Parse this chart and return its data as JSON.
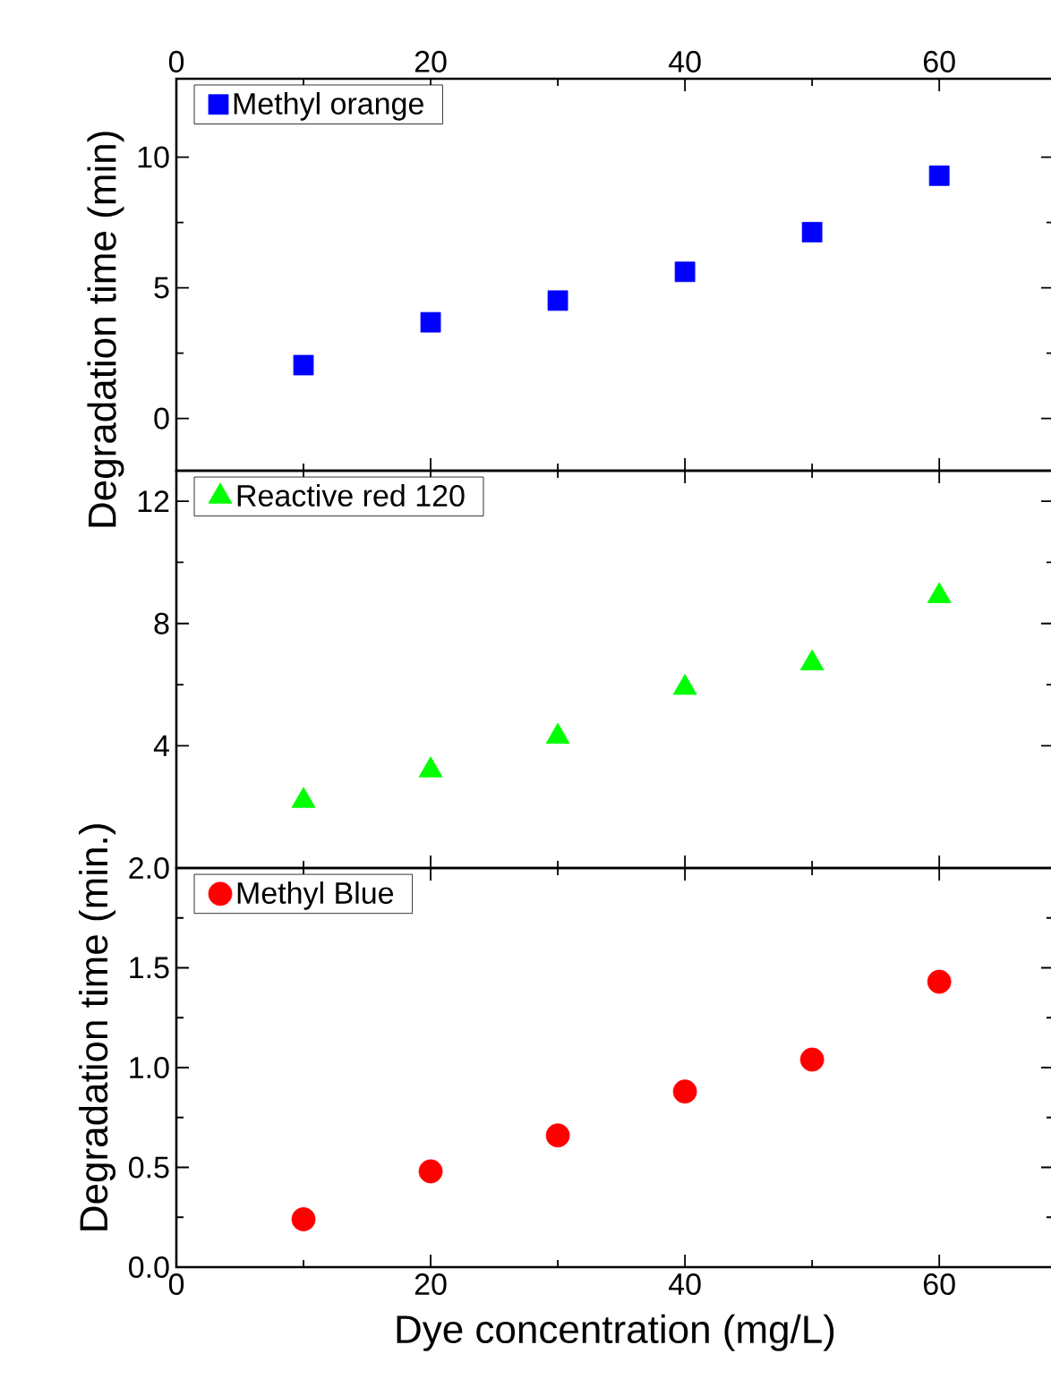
{
  "chart_data": [
    {
      "type": "scatter",
      "ylabel": "Degradation time (min)",
      "marker": "square",
      "legend": "top left",
      "grid": false,
      "xlim": [
        0,
        69
      ],
      "xticks": [
        0,
        20,
        40,
        60
      ],
      "ylim": [
        -2,
        13
      ],
      "yticks": [
        0,
        5,
        10
      ],
      "series": [
        {
          "name": "Methyl orange",
          "color": "#0000ff",
          "x": [
            10,
            20,
            30,
            40,
            50,
            60
          ],
          "values": [
            2.04,
            3.68,
            4.51,
            5.61,
            7.13,
            9.29
          ]
        }
      ]
    },
    {
      "type": "scatter",
      "marker": "triangle",
      "legend": "top left",
      "grid": false,
      "tick_labels": "y",
      "xlim": [
        0,
        69
      ],
      "xticks": [
        0,
        20,
        40,
        60
      ],
      "ylim": [
        0,
        13
      ],
      "yticks": [
        4,
        8,
        12
      ],
      "series": [
        {
          "name": "Reactive red 120",
          "color": "#00ff00",
          "x": [
            10,
            20,
            30,
            40,
            50,
            60
          ],
          "values": [
            2.2,
            3.2,
            4.3,
            5.9,
            6.7,
            8.9
          ]
        }
      ]
    },
    {
      "type": "scatter",
      "xlabel": "Dye concentration (mg/L)",
      "ylabel": "Degradation time (min.)",
      "marker": "circle",
      "legend": "top left",
      "grid": false,
      "xlim": [
        0,
        69
      ],
      "xticks": [
        0,
        20,
        40,
        60
      ],
      "ylim": [
        0,
        2
      ],
      "yticks": [
        {
          "value": 0,
          "label": "0.0"
        },
        0.5,
        {
          "value": 1,
          "label": "1.0"
        },
        1.5,
        {
          "value": 2,
          "label": "2.0"
        }
      ],
      "series": [
        {
          "name": "Methyl Blue",
          "color": "#ff0000",
          "x": [
            10,
            20,
            30,
            40,
            50,
            60
          ],
          "values": [
            0.24,
            0.48,
            0.66,
            0.88,
            1.04,
            1.43
          ]
        }
      ]
    }
  ]
}
